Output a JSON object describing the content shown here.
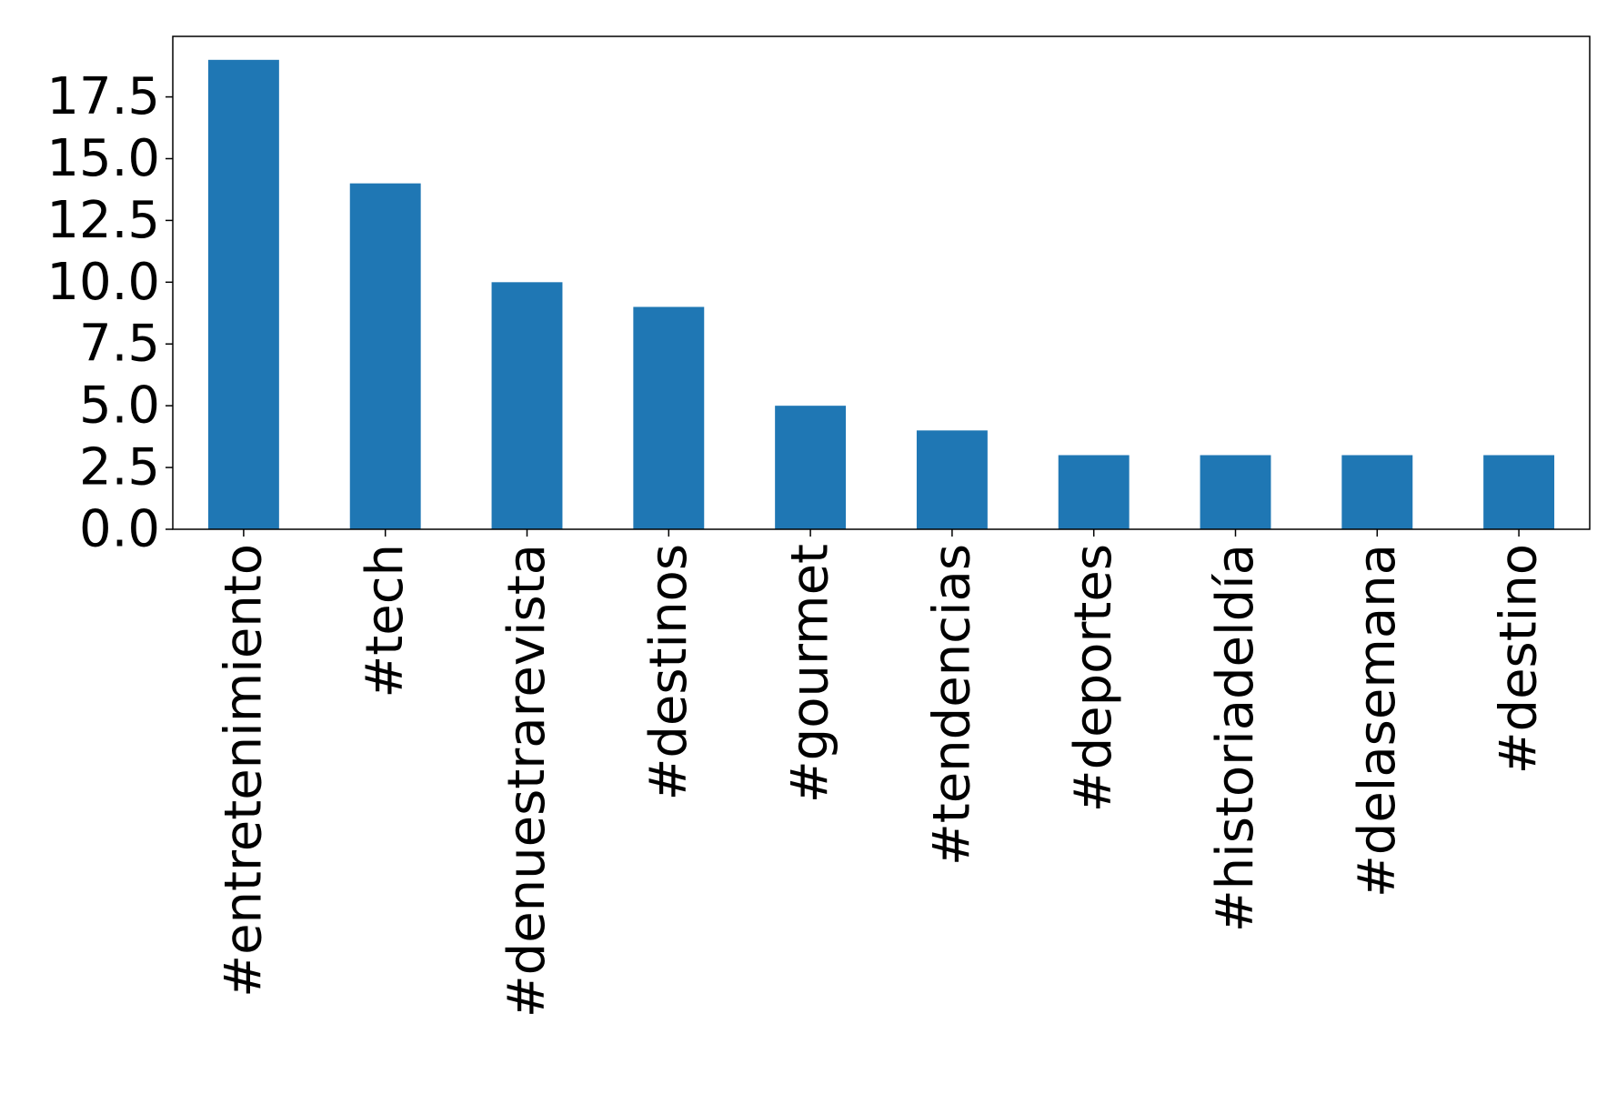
{
  "chart_data": {
    "type": "bar",
    "title": "",
    "xlabel": "",
    "ylabel": "",
    "categories": [
      "#entretenimiento",
      "#tech",
      "#denuestrarevista",
      "#destinos",
      "#gourmet",
      "#tendencias",
      "#deportes",
      "#historiadeldía",
      "#delasemana",
      "#destino"
    ],
    "values": [
      19,
      14,
      10,
      9,
      5,
      4,
      3,
      3,
      3,
      3
    ],
    "ylim": [
      0,
      19.95
    ],
    "yticks": [
      0.0,
      2.5,
      5.0,
      7.5,
      10.0,
      12.5,
      15.0,
      17.5
    ],
    "ytick_labels": [
      "0.0",
      "2.5",
      "5.0",
      "7.5",
      "10.0",
      "12.5",
      "15.0",
      "17.5"
    ],
    "grid": false,
    "legend": "none",
    "bar_color": "#1f77b4"
  }
}
